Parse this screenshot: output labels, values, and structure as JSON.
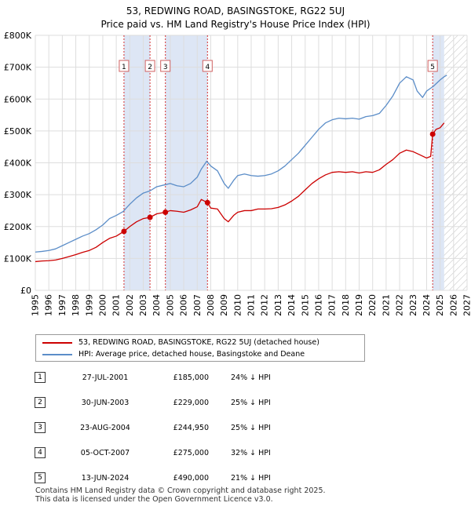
{
  "title_line1": "53, REDWING ROAD, BASINGSTOKE, RG22 5UJ",
  "title_line2": "Price paid vs. HM Land Registry's House Price Index (HPI)",
  "colors": {
    "red": "#cc0000",
    "blue": "#5b8dc8",
    "shade": "#dde6f5",
    "grid": "#dddddd"
  },
  "legend": {
    "red_label": "53, REDWING ROAD, BASINGSTOKE, RG22 5UJ (detached house)",
    "blue_label": "HPI: Average price, detached house, Basingstoke and Deane"
  },
  "sales": [
    {
      "num": "1",
      "date": "27-JUL-2001",
      "price": "£185,000",
      "hpi": "24% ↓ HPI"
    },
    {
      "num": "2",
      "date": "30-JUN-2003",
      "price": "£229,000",
      "hpi": "25% ↓ HPI"
    },
    {
      "num": "3",
      "date": "23-AUG-2004",
      "price": "£244,950",
      "hpi": "25% ↓ HPI"
    },
    {
      "num": "4",
      "date": "05-OCT-2007",
      "price": "£275,000",
      "hpi": "32% ↓ HPI"
    },
    {
      "num": "5",
      "date": "13-JUN-2024",
      "price": "£490,000",
      "hpi": "21% ↓ HPI"
    }
  ],
  "footer_line1": "Contains HM Land Registry data © Crown copyright and database right 2025.",
  "footer_line2": "This data is licensed under the Open Government Licence v3.0.",
  "chart_data": {
    "type": "line",
    "title": "53, REDWING ROAD, BASINGSTOKE, RG22 5UJ",
    "subtitle": "Price paid vs. HM Land Registry's House Price Index (HPI)",
    "xlabel": "",
    "ylabel": "",
    "xlim": [
      1995,
      2027
    ],
    "ylim": [
      0,
      800000
    ],
    "x_ticks": [
      1995,
      1996,
      1997,
      1998,
      1999,
      2000,
      2001,
      2002,
      2003,
      2004,
      2005,
      2006,
      2007,
      2008,
      2009,
      2010,
      2011,
      2012,
      2013,
      2014,
      2015,
      2016,
      2017,
      2018,
      2019,
      2020,
      2021,
      2022,
      2023,
      2024,
      2025,
      2026,
      2027
    ],
    "y_ticks": [
      {
        "value": 0,
        "label": "£0"
      },
      {
        "value": 100000,
        "label": "£100K"
      },
      {
        "value": 200000,
        "label": "£200K"
      },
      {
        "value": 300000,
        "label": "£300K"
      },
      {
        "value": 400000,
        "label": "£400K"
      },
      {
        "value": 500000,
        "label": "£500K"
      },
      {
        "value": 600000,
        "label": "£600K"
      },
      {
        "value": 700000,
        "label": "£700K"
      },
      {
        "value": 800000,
        "label": "£800K"
      }
    ],
    "grid": true,
    "projection_start": 2025.3,
    "shaded_spans": [
      [
        2001.57,
        2003.5
      ],
      [
        2004.64,
        2007.76
      ],
      [
        2024.45,
        2025.3
      ]
    ],
    "series": [
      {
        "name": "53, REDWING ROAD, BASINGSTOKE, RG22 5UJ (detached house)",
        "color": "#cc0000",
        "x": [
          1995,
          1995.5,
          1996,
          1996.5,
          1997,
          1997.5,
          1998,
          1998.5,
          1999,
          1999.5,
          2000,
          2000.5,
          2001,
          2001.57,
          2002,
          2002.5,
          2003,
          2003.5,
          2004,
          2004.64,
          2005,
          2005.5,
          2006,
          2006.5,
          2007,
          2007.3,
          2007.76,
          2008,
          2008.5,
          2009,
          2009.3,
          2009.7,
          2010,
          2010.5,
          2011,
          2011.5,
          2012,
          2012.5,
          2013,
          2013.5,
          2014,
          2014.5,
          2015,
          2015.5,
          2016,
          2016.5,
          2017,
          2017.5,
          2018,
          2018.5,
          2019,
          2019.5,
          2020,
          2020.5,
          2021,
          2021.5,
          2022,
          2022.5,
          2023,
          2023.5,
          2024,
          2024.3,
          2024.45,
          2024.7,
          2025,
          2025.3
        ],
        "y": [
          90000,
          92000,
          93000,
          95000,
          100000,
          106000,
          112000,
          119000,
          125000,
          135000,
          150000,
          163000,
          170000,
          185000,
          200000,
          215000,
          225000,
          229000,
          240000,
          244950,
          250000,
          248000,
          245000,
          252000,
          262000,
          285000,
          275000,
          258000,
          255000,
          225000,
          215000,
          235000,
          245000,
          250000,
          250000,
          255000,
          255000,
          256000,
          260000,
          268000,
          280000,
          295000,
          315000,
          335000,
          350000,
          362000,
          370000,
          372000,
          370000,
          372000,
          368000,
          372000,
          370000,
          378000,
          395000,
          410000,
          430000,
          440000,
          435000,
          425000,
          415000,
          420000,
          490000,
          505000,
          510000,
          525000
        ]
      },
      {
        "name": "HPI: Average price, detached house, Basingstoke and Deane",
        "color": "#5b8dc8",
        "x": [
          1995,
          1995.5,
          1996,
          1996.5,
          1997,
          1997.5,
          1998,
          1998.5,
          1999,
          1999.5,
          2000,
          2000.5,
          2001,
          2001.5,
          2002,
          2002.5,
          2003,
          2003.5,
          2004,
          2004.5,
          2005,
          2005.5,
          2006,
          2006.5,
          2007,
          2007.3,
          2007.7,
          2008,
          2008.5,
          2009,
          2009.3,
          2009.7,
          2010,
          2010.5,
          2011,
          2011.5,
          2012,
          2012.5,
          2013,
          2013.5,
          2014,
          2014.5,
          2015,
          2015.5,
          2016,
          2016.5,
          2017,
          2017.5,
          2018,
          2018.5,
          2019,
          2019.5,
          2020,
          2020.5,
          2021,
          2021.5,
          2022,
          2022.5,
          2023,
          2023.3,
          2023.7,
          2024,
          2024.5,
          2025,
          2025.3,
          2025.5
        ],
        "y": [
          120000,
          122000,
          125000,
          130000,
          140000,
          150000,
          160000,
          170000,
          178000,
          190000,
          205000,
          225000,
          235000,
          247000,
          270000,
          290000,
          305000,
          312000,
          325000,
          330000,
          335000,
          328000,
          325000,
          335000,
          355000,
          380000,
          405000,
          390000,
          375000,
          335000,
          320000,
          345000,
          360000,
          365000,
          360000,
          358000,
          360000,
          365000,
          375000,
          390000,
          410000,
          430000,
          455000,
          480000,
          505000,
          525000,
          535000,
          540000,
          538000,
          540000,
          537000,
          545000,
          548000,
          555000,
          580000,
          610000,
          650000,
          670000,
          660000,
          625000,
          605000,
          625000,
          640000,
          660000,
          670000,
          675000
        ]
      }
    ],
    "sale_markers": [
      {
        "label": "1",
        "x": 2001.57,
        "y": 185000
      },
      {
        "label": "2",
        "x": 2003.5,
        "y": 229000
      },
      {
        "label": "3",
        "x": 2004.64,
        "y": 244950
      },
      {
        "label": "4",
        "x": 2007.76,
        "y": 275000
      },
      {
        "label": "5",
        "x": 2024.45,
        "y": 490000
      }
    ]
  }
}
